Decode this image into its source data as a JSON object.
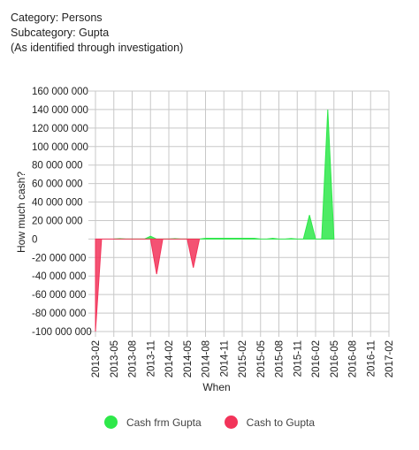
{
  "header": {
    "line1": "Category: Persons",
    "line2": "Subcategory: Gupta",
    "line3": "(As identified through investigation)"
  },
  "chart_data": {
    "type": "area",
    "xlabel": "When",
    "ylabel": "How much cash?",
    "ylim": [
      -100000000,
      160000000
    ],
    "y_ticks": [
      160000000,
      140000000,
      120000000,
      100000000,
      80000000,
      60000000,
      40000000,
      20000000,
      0,
      -20000000,
      -40000000,
      -60000000,
      -80000000,
      -100000000
    ],
    "y_tick_labels": [
      "160 000 000",
      "140 000 000",
      "120 000 000",
      "100 000 000",
      "80 000 000",
      "60 000 000",
      "40 000 000",
      "20 000 000",
      "0",
      "-20 000 000",
      "-40 000 000",
      "-60 000 000",
      "-80 000 000",
      "-100 000 000"
    ],
    "x_ticks": [
      "2013-02",
      "2013-05",
      "2013-08",
      "2013-11",
      "2014-02",
      "2014-05",
      "2014-08",
      "2014-11",
      "2015-02",
      "2015-05",
      "2015-08",
      "2015-11",
      "2016-02",
      "2016-05",
      "2016-08",
      "2016-11",
      "2017-02"
    ],
    "grid": true,
    "legend_position": "bottom",
    "series": [
      {
        "name": "Cash frm Gupta",
        "color": "#2ee84a",
        "points": [
          [
            "2013-05",
            0
          ],
          [
            "2013-06",
            500000
          ],
          [
            "2013-07",
            0
          ],
          [
            "2013-10",
            0
          ],
          [
            "2013-11",
            3000000
          ],
          [
            "2013-12",
            0
          ],
          [
            "2014-02",
            0
          ],
          [
            "2014-03",
            500000
          ],
          [
            "2014-04",
            0
          ],
          [
            "2014-07",
            0
          ],
          [
            "2014-08",
            800000
          ],
          [
            "2015-04",
            800000
          ],
          [
            "2015-05",
            0
          ],
          [
            "2015-06",
            0
          ],
          [
            "2015-07",
            800000
          ],
          [
            "2015-08",
            0
          ],
          [
            "2015-09",
            0
          ],
          [
            "2015-10",
            600000
          ],
          [
            "2015-11",
            0
          ],
          [
            "2015-12",
            0
          ],
          [
            "2016-01",
            26000000
          ],
          [
            "2016-02",
            0
          ],
          [
            "2016-03",
            0
          ],
          [
            "2016-04",
            140000000
          ],
          [
            "2016-05",
            0
          ]
        ]
      },
      {
        "name": "Cash to Gupta",
        "color": "#f2345a",
        "points": [
          [
            "2013-02",
            0
          ],
          [
            "2013-02",
            -100000000
          ],
          [
            "2013-03",
            0
          ],
          [
            "2013-11",
            0
          ],
          [
            "2013-12",
            -38000000
          ],
          [
            "2014-01",
            0
          ],
          [
            "2014-05",
            0
          ],
          [
            "2014-06",
            -31000000
          ],
          [
            "2014-07",
            0
          ]
        ]
      }
    ]
  }
}
